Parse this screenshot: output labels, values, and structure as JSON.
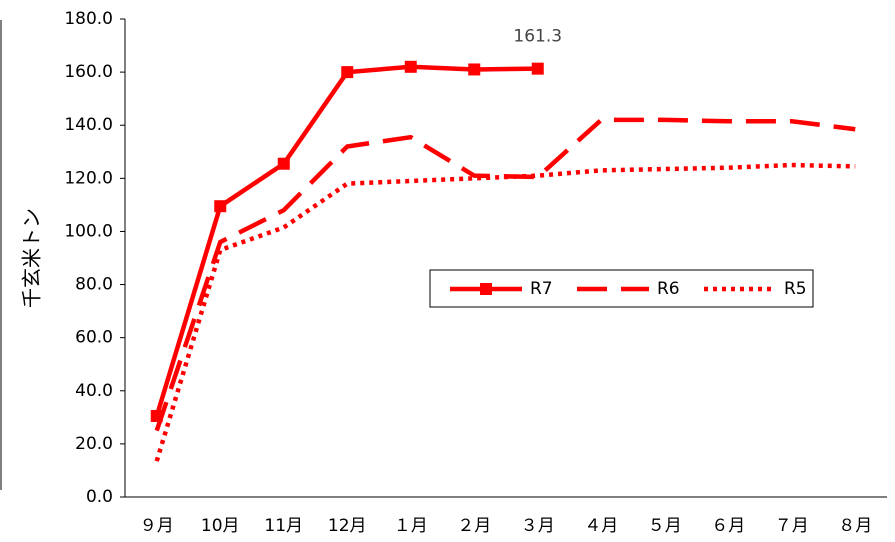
{
  "chart_data": {
    "type": "line",
    "y_label": "千玄米トン",
    "categories": [
      "９月",
      "10月",
      "11月",
      "12月",
      "１月",
      "２月",
      "３月",
      "４月",
      "５月",
      "６月",
      "７月",
      "８月"
    ],
    "series": [
      {
        "name": "R7",
        "color": "#ff0000",
        "style": "solid",
        "markers": true,
        "values": [
          30.5,
          109.5,
          125.5,
          160,
          162,
          161,
          161.3,
          null,
          null,
          null,
          null,
          null
        ]
      },
      {
        "name": "R6",
        "color": "#ff0000",
        "style": "dashed",
        "markers": false,
        "values": [
          25,
          96,
          108,
          132,
          135.5,
          121,
          120.5,
          142,
          142,
          141.5,
          141.5,
          138.5
        ]
      },
      {
        "name": "R5",
        "color": "#ff0000",
        "style": "dotted",
        "markers": false,
        "values": [
          13.5,
          93,
          101.5,
          118,
          119,
          120,
          121,
          123,
          123.5,
          124,
          125,
          124.5
        ]
      }
    ],
    "annotation": {
      "series": 0,
      "index": 6,
      "label": "161.3"
    },
    "ylim": [
      0,
      180
    ],
    "yticks": [
      {
        "value": 0,
        "label": "0.0"
      },
      {
        "value": 20,
        "label": "20.0"
      },
      {
        "value": 40,
        "label": "40.0"
      },
      {
        "value": 60,
        "label": "60.0"
      },
      {
        "value": 80,
        "label": "80.0"
      },
      {
        "value": 100,
        "label": "100.0"
      },
      {
        "value": 120,
        "label": "120.0"
      },
      {
        "value": 140,
        "label": "140.0"
      },
      {
        "value": 160,
        "label": "160.0"
      },
      {
        "value": 180,
        "label": "180.0"
      }
    ],
    "grid": false
  }
}
